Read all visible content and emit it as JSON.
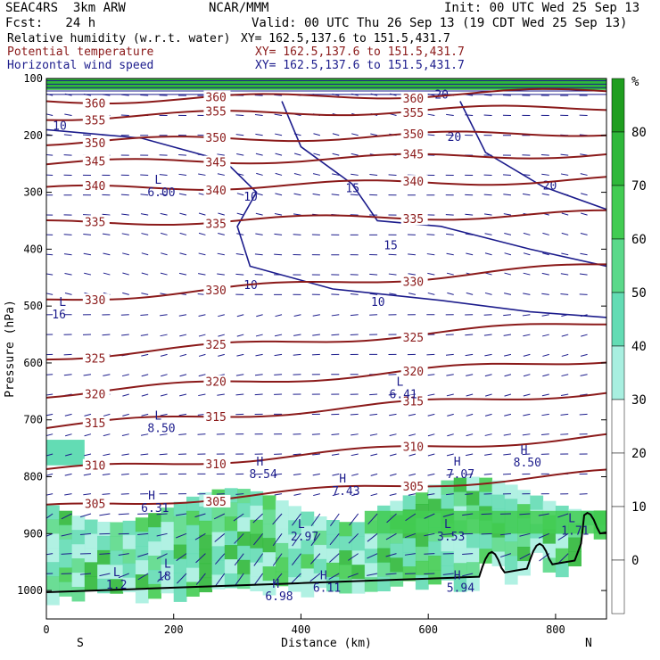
{
  "header": {
    "model": "SEAC4RS  3km ARW",
    "center": "NCAR/MMM",
    "init": "Init: 00 UTC Wed 25 Sep 13",
    "fcst": "Fcst:   24 h",
    "valid": "Valid: 00 UTC Thu 26 Sep 13 (19 CDT Wed 25 Sep 13)"
  },
  "fields": [
    {
      "name": "Relative humidity (w.r.t. water)",
      "xy": "XY= 162.5,137.6 to 151.5,431.7",
      "color": "#000000"
    },
    {
      "name": "Potential temperature",
      "xy": "XY= 162.5,137.6 to 151.5,431.7",
      "color": "#8b1a1a"
    },
    {
      "name": "Horizontal wind speed",
      "xy": "XY= 162.5,137.6 to 151.5,431.7",
      "color": "#1c1c8c"
    }
  ],
  "colorbar": {
    "unit": "%",
    "ticks": [
      "80",
      "70",
      "60",
      "50",
      "40",
      "30",
      "20",
      "10",
      "0"
    ],
    "colors": [
      "#1f9e1f",
      "#2fb83a",
      "#42cc52",
      "#5bd98a",
      "#63dcb4",
      "#a8efe0",
      "#ffffff",
      "#ffffff",
      "#ffffff",
      "#ffffff"
    ]
  },
  "chart_data": {
    "type": "heatmap",
    "xlabel": "Distance (km)",
    "ylabel": "Pressure (hPa)",
    "xlim": [
      0,
      880
    ],
    "ylim": [
      1050,
      100
    ],
    "x_ticks": [
      "0",
      "200",
      "400",
      "600",
      "800"
    ],
    "y_ticks": [
      "100",
      "200",
      "300",
      "400",
      "500",
      "600",
      "700",
      "800",
      "900",
      "1000"
    ],
    "end_labels": {
      "left": "S",
      "right": "N"
    },
    "theta_contours": [
      {
        "label": "360",
        "level": 360,
        "pressure": 140
      },
      {
        "label": "355",
        "level": 355,
        "pressure": 168
      },
      {
        "label": "350",
        "level": 350,
        "pressure": 212
      },
      {
        "label": "345",
        "level": 345,
        "pressure": 250
      },
      {
        "label": "340",
        "level": 340,
        "pressure": 295
      },
      {
        "label": "335",
        "level": 335,
        "pressure": 355
      },
      {
        "label": "330",
        "level": 330,
        "pressure": 490
      },
      {
        "label": "325",
        "level": 325,
        "pressure": 590
      },
      {
        "label": "320",
        "level": 320,
        "pressure": 655
      },
      {
        "label": "315",
        "level": 315,
        "pressure": 712
      },
      {
        "label": "310",
        "level": 310,
        "pressure": 790
      },
      {
        "label": "305",
        "level": 305,
        "pressure": 855
      }
    ],
    "wind_speed_contours": [
      "10",
      "15",
      "20"
    ],
    "extrema": [
      {
        "type": "L",
        "value": "6.00",
        "x": 170,
        "p": 285
      },
      {
        "type": "L",
        "value": "16",
        "x": 20,
        "p": 500
      },
      {
        "type": "L",
        "value": "6.41",
        "x": 550,
        "p": 640
      },
      {
        "type": "L",
        "value": "8.50",
        "x": 170,
        "p": 700
      },
      {
        "type": "H",
        "value": "8.54",
        "x": 330,
        "p": 780
      },
      {
        "type": "H",
        "value": "7.43",
        "x": 460,
        "p": 810
      },
      {
        "type": "H",
        "value": "7.07",
        "x": 640,
        "p": 780
      },
      {
        "type": "H",
        "value": "8.50",
        "x": 745,
        "p": 760
      },
      {
        "type": "H",
        "value": "6.31",
        "x": 160,
        "p": 840
      },
      {
        "type": "L",
        "value": "2.97",
        "x": 395,
        "p": 890
      },
      {
        "type": "L",
        "value": "3.53",
        "x": 625,
        "p": 890
      },
      {
        "type": "L",
        "value": "1.71",
        "x": 820,
        "p": 880
      },
      {
        "type": "L",
        "value": "1.2",
        "x": 105,
        "p": 975
      },
      {
        "type": "L",
        "value": "18",
        "x": 185,
        "p": 960
      },
      {
        "type": "H",
        "value": "6.98",
        "x": 355,
        "p": 995
      },
      {
        "type": "H",
        "value": "6.11",
        "x": 430,
        "p": 980
      },
      {
        "type": "H",
        "value": "5.94",
        "x": 640,
        "p": 980
      }
    ]
  }
}
